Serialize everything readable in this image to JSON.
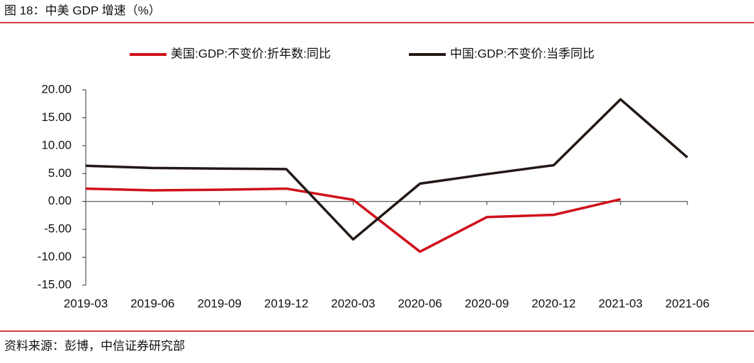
{
  "header": {
    "title": "图 18：中美 GDP 增速（%）"
  },
  "chart_data": {
    "type": "line",
    "categories": [
      "2019-03",
      "2019-06",
      "2019-09",
      "2019-12",
      "2020-03",
      "2020-06",
      "2020-09",
      "2020-12",
      "2021-03",
      "2021-06"
    ],
    "series": [
      {
        "name": "美国:GDP:不变价:折年数:同比",
        "color": "#d0101b",
        "values": [
          2.3,
          2.0,
          2.1,
          2.3,
          0.3,
          -9.0,
          -2.8,
          -2.4,
          0.4,
          null
        ]
      },
      {
        "name": "中国:GDP:不变价:当季同比",
        "color": "#231815",
        "values": [
          6.4,
          6.0,
          5.9,
          5.8,
          -6.8,
          3.2,
          4.9,
          6.5,
          18.3,
          7.9
        ]
      }
    ],
    "ylim": [
      -15,
      20
    ],
    "yticks": [
      {
        "value": -15,
        "label": "-15.00"
      },
      {
        "value": -10,
        "label": "-10.00"
      },
      {
        "value": -5,
        "label": "-5.00"
      },
      {
        "value": 0,
        "label": "0.00"
      },
      {
        "value": 5,
        "label": "5.00"
      },
      {
        "value": 10,
        "label": "10.00"
      },
      {
        "value": 15,
        "label": "15.00"
      },
      {
        "value": 20,
        "label": "20.00"
      }
    ],
    "grid": false,
    "legend": "top"
  },
  "footer": {
    "source": "资料来源：彭博，中信证券研究部"
  }
}
